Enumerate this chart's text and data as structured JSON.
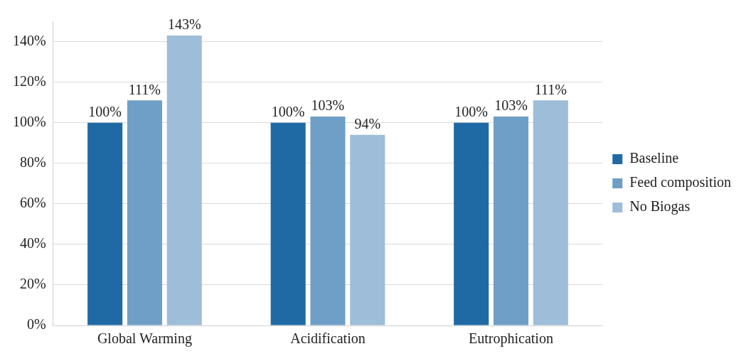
{
  "chart_data": {
    "type": "bar",
    "categories": [
      "Global Warming",
      "Acidification",
      "Eutrophication"
    ],
    "series": [
      {
        "name": "Baseline",
        "color": "#1f6aa5",
        "values": [
          100,
          100,
          100
        ],
        "value_labels": [
          "100%",
          "100%",
          "100%"
        ]
      },
      {
        "name": "Feed composition",
        "color": "#6f9fc6",
        "values": [
          111,
          103,
          103
        ],
        "value_labels": [
          "111%",
          "103%",
          "103%"
        ]
      },
      {
        "name": "No Biogas",
        "color": "#9dbdd8",
        "values": [
          143,
          94,
          111
        ],
        "value_labels": [
          "143%",
          "94%",
          "111%"
        ]
      }
    ],
    "ylim": [
      0,
      150
    ],
    "yticks": [
      {
        "value": 0,
        "label": "0%"
      },
      {
        "value": 20,
        "label": "20%"
      },
      {
        "value": 40,
        "label": "40%"
      },
      {
        "value": 60,
        "label": "60%"
      },
      {
        "value": 80,
        "label": "80%"
      },
      {
        "value": 100,
        "label": "100%"
      },
      {
        "value": 120,
        "label": "120%"
      },
      {
        "value": 140,
        "label": "140%"
      }
    ],
    "grid": "y",
    "legend": "right"
  }
}
